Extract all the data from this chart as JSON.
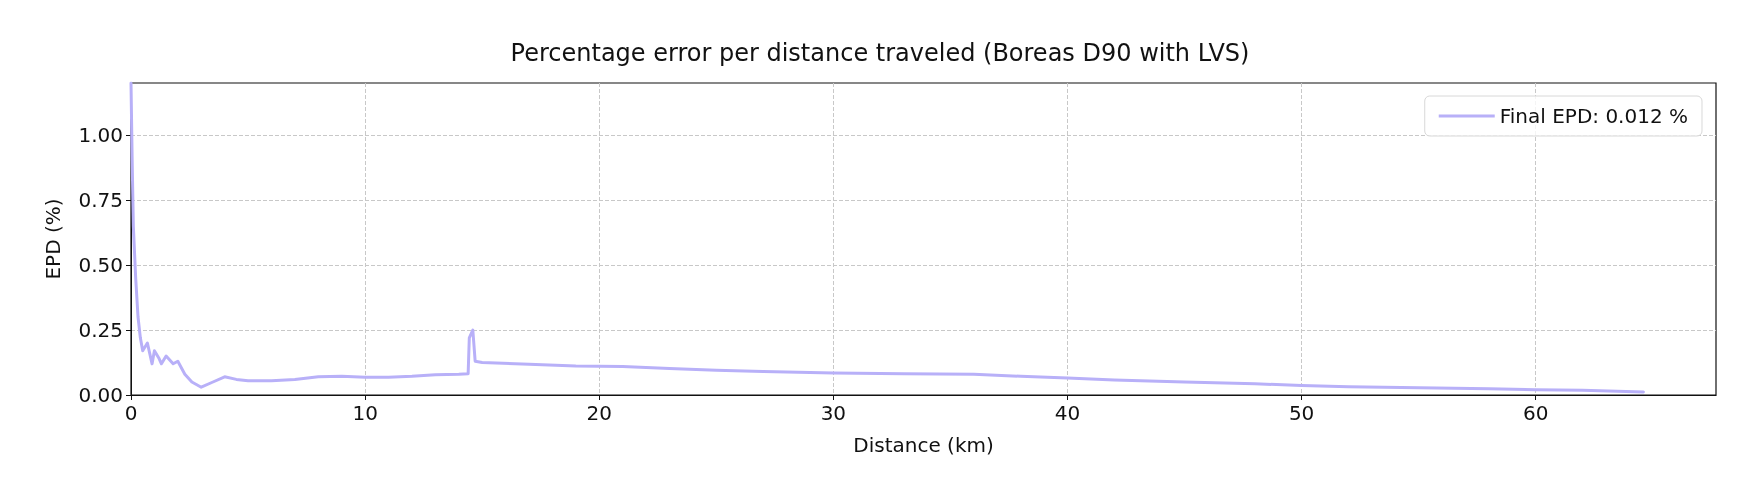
{
  "chart_data": {
    "type": "line",
    "title": "Percentage error per distance traveled (Boreas D90 with LVS)",
    "xlabel": "Distance (km)",
    "ylabel": "EPD (%)",
    "xlim": [
      0,
      67.7
    ],
    "xticks": [
      0,
      10,
      20,
      30,
      40,
      50,
      60
    ],
    "ylim": [
      0,
      1.2
    ],
    "yticks": [
      {
        "value": 0,
        "label": "0.00"
      },
      {
        "value": 0.25,
        "label": "0.25"
      },
      {
        "value": 0.5,
        "label": "0.50"
      },
      {
        "value": 0.75,
        "label": "0.75"
      },
      {
        "value": 1,
        "label": "1.00"
      }
    ],
    "grid": true,
    "legend": "top right",
    "marker": "none",
    "line_style": "solid",
    "series": [
      {
        "name": "Final EPD: 0.012 %",
        "color": "#b8b0f8",
        "x": [
          0,
          0.05,
          0.1,
          0.2,
          0.3,
          0.4,
          0.5,
          0.7,
          0.9,
          1.0,
          1.2,
          1.3,
          1.5,
          1.8,
          2.0,
          2.3,
          2.6,
          3.0,
          3.5,
          4,
          4.5,
          5,
          6,
          7,
          8,
          9,
          10,
          11,
          12,
          13,
          14,
          14.4,
          14.45,
          14.6,
          14.7,
          15,
          17,
          19,
          21,
          23,
          25,
          27,
          30,
          33,
          36,
          38,
          40,
          42,
          45,
          48,
          50,
          52,
          55,
          58,
          60,
          62,
          64.6
        ],
        "values": [
          1.2,
          0.9,
          0.65,
          0.45,
          0.3,
          0.22,
          0.17,
          0.2,
          0.12,
          0.17,
          0.14,
          0.12,
          0.15,
          0.12,
          0.13,
          0.08,
          0.05,
          0.03,
          0.05,
          0.07,
          0.06,
          0.055,
          0.055,
          0.06,
          0.07,
          0.072,
          0.068,
          0.068,
          0.072,
          0.078,
          0.08,
          0.082,
          0.22,
          0.25,
          0.13,
          0.125,
          0.118,
          0.112,
          0.11,
          0.102,
          0.095,
          0.09,
          0.085,
          0.082,
          0.08,
          0.072,
          0.065,
          0.058,
          0.05,
          0.043,
          0.037,
          0.032,
          0.028,
          0.024,
          0.02,
          0.018,
          0.012
        ]
      }
    ]
  }
}
